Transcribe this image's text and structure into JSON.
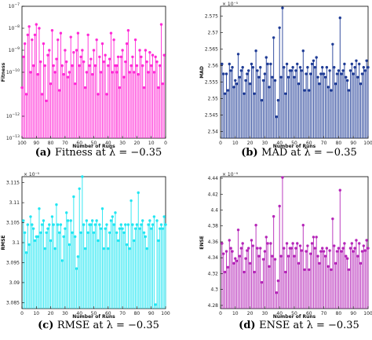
{
  "chart_data": [
    {
      "type": "bar",
      "color": "#ff2bd6",
      "caption_label": "(a)",
      "caption_text": "Fitness at λ = −0.35",
      "xlabel": "Number of Runs",
      "ylabel": "Fitness",
      "yscale": "log",
      "x_reversed": true,
      "xlim": [
        100,
        0
      ],
      "ylim": [
        1e-13,
        1e-07
      ],
      "xticks": [
        100,
        90,
        80,
        70,
        60,
        50,
        40,
        30,
        20,
        10,
        0
      ],
      "yticks": [
        {
          "value": 1e-13,
          "base": "10",
          "exp": "−13"
        },
        {
          "value": 1e-12,
          "base": "10",
          "exp": "−12"
        },
        {
          "value": 1e-10,
          "base": "10",
          "exp": "−10"
        },
        {
          "value": 1e-09,
          "base": "10",
          "exp": "−9"
        },
        {
          "value": 1e-08,
          "base": "10",
          "exp": "−8"
        },
        {
          "value": 1e-07,
          "base": "10",
          "exp": "−7"
        }
      ],
      "multiplier": "",
      "series": [
        {
          "x": [
            100,
            99,
            98,
            97,
            96,
            95,
            94,
            93,
            92,
            91,
            90,
            89,
            88,
            87,
            86,
            85,
            84,
            83,
            82,
            81,
            80,
            79,
            78,
            77,
            76,
            75,
            74,
            73,
            72,
            71,
            70,
            69,
            68,
            67,
            66,
            65,
            64,
            63,
            62,
            61,
            60,
            59,
            58,
            57,
            56,
            55,
            54,
            53,
            52,
            51,
            50,
            49,
            48,
            47,
            46,
            45,
            44,
            43,
            42,
            41,
            40,
            39,
            38,
            37,
            36,
            35,
            34,
            33,
            34,
            32,
            31,
            30,
            29,
            28,
            27,
            26,
            25,
            24,
            23,
            22,
            21,
            20,
            19,
            18,
            17,
            16,
            15,
            14,
            13,
            12,
            11,
            10,
            9,
            8,
            7,
            6,
            5,
            4,
            3,
            2,
            1
          ],
          "values": [
            2e-11,
            5e-10,
            2e-09,
            1e-11,
            5e-09,
            1.2e-08,
            1e-10,
            3e-09,
            2e-10,
            5e-09,
            1.5e-08,
            8e-11,
            1e-08,
            3e-10,
            1e-11,
            2e-09,
            2e-10,
            5e-12,
            6e-10,
            1e-09,
            3e-11,
            8e-09,
            2e-10,
            1e-10,
            4e-10,
            3e-09,
            1.5e-11,
            6e-09,
            2e-10,
            8e-11,
            1e-09,
            3e-10,
            6e-11,
            1e-10,
            4e-09,
            2e-10,
            8e-10,
            3e-11,
            1e-09,
            6e-09,
            2e-10,
            5e-10,
            1e-09,
            3e-10,
            2e-11,
            1e-10,
            5e-09,
            2e-10,
            4e-10,
            8e-11,
            1e-09,
            2e-10,
            3e-09,
            1e-11,
            5e-10,
            1e-10,
            2e-09,
            3e-10,
            6e-10,
            1e-11,
            2e-10,
            4e-10,
            6e-09,
            1e-10,
            3e-09,
            2e-10,
            1e-10,
            5e-10,
            2e-10,
            2e-11,
            5e-10,
            1e-09,
            6e-11,
            3e-10,
            2e-09,
            8e-09,
            1e-10,
            2e-10,
            5e-10,
            1e-10,
            3e-09,
            2e-10,
            8e-11,
            1e-09,
            5e-10,
            2e-10,
            2e-11,
            1e-09,
            3e-10,
            1e-10,
            8e-10,
            2e-10,
            6e-10,
            1e-10,
            5e-10,
            3e-10,
            2e-11,
            2e-10,
            1.5e-08,
            3e-11,
            6e-10
          ]
        }
      ]
    },
    {
      "type": "bar",
      "color": "#1f3c96",
      "caption_label": "(b)",
      "caption_text": "MAD at λ = −0.35",
      "xlabel": "Number of Runs",
      "ylabel": "MAD",
      "xlim": [
        0,
        100
      ],
      "ylim": [
        2.538,
        2.578
      ],
      "xticks": [
        0,
        10,
        20,
        30,
        40,
        50,
        60,
        70,
        80,
        90,
        100
      ],
      "yticks": [
        {
          "value": 2.54,
          "label": "2.54"
        },
        {
          "value": 2.545,
          "label": "2.545"
        },
        {
          "value": 2.55,
          "label": "2.55"
        },
        {
          "value": 2.555,
          "label": "2.555"
        },
        {
          "value": 2.56,
          "label": "2.56"
        },
        {
          "value": 2.565,
          "label": "2.565"
        },
        {
          "value": 2.57,
          "label": "2.57"
        },
        {
          "value": 2.575,
          "label": "2.575"
        }
      ],
      "multiplier": "× 10⁻⁵",
      "series": [
        {
          "x": [
            1,
            2,
            3,
            4,
            5,
            6,
            7,
            8,
            9,
            10,
            11,
            12,
            13,
            14,
            15,
            16,
            17,
            18,
            19,
            20,
            21,
            22,
            23,
            24,
            25,
            26,
            27,
            28,
            29,
            30,
            31,
            32,
            33,
            34,
            35,
            36,
            37,
            38,
            39,
            40,
            41,
            42,
            43,
            44,
            45,
            46,
            47,
            48,
            49,
            50,
            51,
            52,
            53,
            54,
            55,
            56,
            57,
            58,
            59,
            60,
            61,
            62,
            63,
            64,
            65,
            66,
            67,
            68,
            69,
            70,
            71,
            72,
            73,
            74,
            75,
            76,
            77,
            78,
            79,
            80,
            81,
            82,
            83,
            84,
            85,
            86,
            87,
            88,
            89,
            90,
            91,
            92,
            93,
            94,
            95,
            96,
            97,
            98,
            99,
            100
          ],
          "values": [
            2.5605,
            2.5575,
            2.5515,
            2.5575,
            2.5525,
            2.5605,
            2.5585,
            2.5595,
            2.5535,
            2.5555,
            2.5545,
            2.5635,
            2.5565,
            2.5585,
            2.5595,
            2.5515,
            2.5555,
            2.5575,
            2.5585,
            2.5545,
            2.5605,
            2.5595,
            2.5515,
            2.5645,
            2.5585,
            2.5565,
            2.5595,
            2.5495,
            2.5555,
            2.5575,
            2.5625,
            2.5605,
            2.5535,
            2.5605,
            2.5565,
            2.5685,
            2.5555,
            2.5445,
            2.5495,
            2.5715,
            2.5565,
            2.5775,
            2.5595,
            2.5515,
            2.5605,
            2.5565,
            2.5585,
            2.5585,
            2.5595,
            2.5565,
            2.5585,
            2.5605,
            2.5545,
            2.5595,
            2.5585,
            2.5645,
            2.5525,
            2.5575,
            2.5595,
            2.5525,
            2.5575,
            2.5605,
            2.5615,
            2.5595,
            2.5625,
            2.5565,
            2.5545,
            2.5575,
            2.5595,
            2.5575,
            2.5565,
            2.5595,
            2.5535,
            2.5585,
            2.5525,
            2.5665,
            2.5595,
            2.5545,
            2.5575,
            2.5585,
            2.5745,
            2.5575,
            2.5585,
            2.5605,
            2.5565,
            2.5555,
            2.5525,
            2.5585,
            2.5605,
            2.5575,
            2.5595,
            2.5615,
            2.5565,
            2.5605,
            2.5545,
            2.5575,
            2.5595,
            2.5585,
            2.5615,
            2.5595
          ]
        }
      ]
    },
    {
      "type": "bar",
      "color": "#22e6f2",
      "caption_label": "(c)",
      "caption_text": "RMSE at λ = −0.35",
      "xlabel": "Number of Runs",
      "ylabel": "RMSE",
      "xlim": [
        0,
        100
      ],
      "ylim": [
        3.0835,
        3.1165
      ],
      "xticks": [
        0,
        10,
        20,
        30,
        40,
        50,
        60,
        70,
        80,
        90,
        100
      ],
      "yticks": [
        {
          "value": 3.085,
          "label": "3.085"
        },
        {
          "value": 3.09,
          "label": "3.09"
        },
        {
          "value": 3.095,
          "label": "3.095"
        },
        {
          "value": 3.1,
          "label": "3.1"
        },
        {
          "value": 3.105,
          "label": "3.105"
        },
        {
          "value": 3.11,
          "label": "3.11"
        },
        {
          "value": 3.115,
          "label": "3.115"
        }
      ],
      "multiplier": "× 10⁻⁵",
      "series": [
        {
          "x": [
            1,
            2,
            3,
            4,
            5,
            6,
            7,
            8,
            9,
            10,
            11,
            12,
            13,
            14,
            15,
            16,
            17,
            18,
            19,
            20,
            21,
            22,
            23,
            24,
            25,
            26,
            27,
            28,
            29,
            30,
            31,
            32,
            33,
            34,
            35,
            36,
            37,
            38,
            39,
            40,
            41,
            42,
            43,
            44,
            45,
            46,
            47,
            48,
            49,
            50,
            51,
            52,
            53,
            54,
            55,
            56,
            57,
            58,
            59,
            60,
            61,
            62,
            63,
            64,
            65,
            66,
            67,
            68,
            69,
            70,
            71,
            72,
            73,
            74,
            75,
            76,
            77,
            78,
            79,
            80,
            81,
            82,
            83,
            84,
            85,
            86,
            87,
            88,
            89,
            90,
            91,
            92,
            93,
            94,
            95,
            96,
            97,
            98,
            99,
            100
          ],
          "values": [
            3.1055,
            3.1025,
            3.0975,
            3.1045,
            3.0995,
            3.1065,
            3.1045,
            3.1035,
            3.1005,
            3.1015,
            3.1015,
            3.1085,
            3.1025,
            3.1045,
            3.1055,
            3.0985,
            3.1025,
            3.1035,
            3.1045,
            3.1005,
            3.1065,
            3.1045,
            3.0985,
            3.1095,
            3.1045,
            3.1025,
            3.1045,
            3.0955,
            3.1015,
            3.1035,
            3.1075,
            3.1055,
            3.0995,
            3.1055,
            3.1025,
            3.1115,
            3.1015,
            3.0935,
            3.0965,
            3.1135,
            3.1025,
            3.1165,
            3.1045,
            3.0985,
            3.1055,
            3.1025,
            3.1045,
            3.1045,
            3.1055,
            3.1025,
            3.1045,
            3.1055,
            3.1005,
            3.1045,
            3.1035,
            3.1085,
            3.0985,
            3.1035,
            3.1045,
            3.0985,
            3.1025,
            3.1055,
            3.1065,
            3.1045,
            3.1075,
            3.1025,
            3.1005,
            3.1035,
            3.1045,
            3.1035,
            3.1025,
            3.1045,
            3.0995,
            3.1045,
            3.0985,
            3.1105,
            3.1045,
            3.1005,
            3.1035,
            3.1045,
            3.1125,
            3.1035,
            3.1045,
            3.1055,
            3.1025,
            3.1015,
            3.0985,
            3.1045,
            3.1055,
            3.1035,
            3.1045,
            3.1065,
            3.0845,
            3.1055,
            3.1005,
            3.1035,
            3.1045,
            3.1035,
            3.1065,
            3.1045
          ]
        }
      ]
    },
    {
      "type": "bar",
      "color": "#b526b8",
      "caption_label": "(d)",
      "caption_text": "ENSE at λ = −0.35",
      "xlabel": "Number of Runs",
      "ylabel": "ENSE",
      "xlim": [
        0,
        100
      ],
      "ylim": [
        4.276,
        4.442
      ],
      "xticks": [
        0,
        10,
        20,
        30,
        40,
        50,
        60,
        70,
        80,
        90,
        100
      ],
      "yticks": [
        {
          "value": 4.28,
          "label": "4.28"
        },
        {
          "value": 4.3,
          "label": "4.3"
        },
        {
          "value": 4.32,
          "label": "4.32"
        },
        {
          "value": 4.34,
          "label": "4.34"
        },
        {
          "value": 4.36,
          "label": "4.36"
        },
        {
          "value": 4.38,
          "label": "4.38"
        },
        {
          "value": 4.4,
          "label": "4.4"
        },
        {
          "value": 4.42,
          "label": "4.42"
        },
        {
          "value": 4.44,
          "label": "4.44"
        }
      ],
      "multiplier": "× 10⁻⁹",
      "series": [
        {
          "x": [
            1,
            2,
            3,
            4,
            5,
            6,
            7,
            8,
            9,
            10,
            11,
            12,
            13,
            14,
            15,
            16,
            17,
            18,
            19,
            20,
            21,
            22,
            23,
            24,
            25,
            26,
            27,
            28,
            29,
            30,
            31,
            32,
            33,
            34,
            35,
            36,
            37,
            38,
            39,
            40,
            41,
            42,
            43,
            44,
            45,
            46,
            47,
            48,
            49,
            50,
            51,
            52,
            53,
            54,
            55,
            56,
            57,
            58,
            59,
            60,
            61,
            62,
            63,
            64,
            65,
            66,
            67,
            68,
            69,
            70,
            71,
            72,
            73,
            74,
            75,
            76,
            77,
            78,
            79,
            80,
            81,
            82,
            83,
            84,
            85,
            86,
            87,
            88,
            89,
            90,
            91,
            92,
            93,
            94,
            95,
            96,
            97,
            98,
            99,
            100
          ],
          "values": [
            4.358,
            4.345,
            4.322,
            4.348,
            4.328,
            4.362,
            4.352,
            4.348,
            4.333,
            4.339,
            4.336,
            4.375,
            4.342,
            4.352,
            4.358,
            4.322,
            4.339,
            4.349,
            4.352,
            4.333,
            4.362,
            4.355,
            4.322,
            4.381,
            4.352,
            4.342,
            4.352,
            4.309,
            4.338,
            4.348,
            4.366,
            4.358,
            4.329,
            4.358,
            4.342,
            4.392,
            4.338,
            4.296,
            4.311,
            4.405,
            4.342,
            4.441,
            4.352,
            4.322,
            4.358,
            4.342,
            4.352,
            4.352,
            4.358,
            4.342,
            4.352,
            4.358,
            4.333,
            4.355,
            4.349,
            4.381,
            4.325,
            4.348,
            4.355,
            4.325,
            4.345,
            4.358,
            4.366,
            4.352,
            4.366,
            4.342,
            4.333,
            4.348,
            4.352,
            4.348,
            4.342,
            4.352,
            4.329,
            4.349,
            4.325,
            4.389,
            4.355,
            4.333,
            4.348,
            4.352,
            4.425,
            4.348,
            4.352,
            4.358,
            4.342,
            4.339,
            4.325,
            4.352,
            4.358,
            4.348,
            4.352,
            4.362,
            4.342,
            4.358,
            4.333,
            4.348,
            4.355,
            4.349,
            4.362,
            4.352
          ]
        }
      ]
    }
  ]
}
